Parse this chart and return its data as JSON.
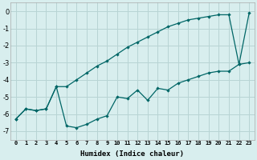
{
  "xlabel": "Humidex (Indice chaleur)",
  "x": [
    0,
    1,
    2,
    3,
    4,
    5,
    6,
    7,
    8,
    9,
    10,
    11,
    12,
    13,
    14,
    15,
    16,
    17,
    18,
    19,
    20,
    21,
    22,
    23
  ],
  "line1_y": [
    -6.3,
    -5.7,
    -5.8,
    -5.7,
    -4.4,
    -4.4,
    -4.0,
    -3.6,
    -3.2,
    -2.9,
    -2.5,
    -2.1,
    -1.8,
    -1.5,
    -1.2,
    -0.9,
    -0.7,
    -0.5,
    -0.4,
    -0.3,
    -0.2,
    -0.2,
    -3.1,
    -0.1
  ],
  "line2_y": [
    -6.3,
    -5.7,
    -5.8,
    -5.7,
    -4.4,
    -6.7,
    -6.8,
    -6.6,
    -6.3,
    -6.1,
    -5.0,
    -5.1,
    -4.6,
    -5.2,
    -4.5,
    -4.6,
    -4.2,
    -4.0,
    -3.8,
    -3.6,
    -3.5,
    -3.5,
    -3.1,
    -3.0
  ],
  "line_color": "#006666",
  "bg_color": "#d8eeee",
  "grid_color": "#b8d4d4",
  "ylim": [
    -7.5,
    0.5
  ],
  "xlim": [
    -0.5,
    23.5
  ],
  "yticks": [
    0,
    -1,
    -2,
    -3,
    -4,
    -5,
    -6,
    -7
  ]
}
